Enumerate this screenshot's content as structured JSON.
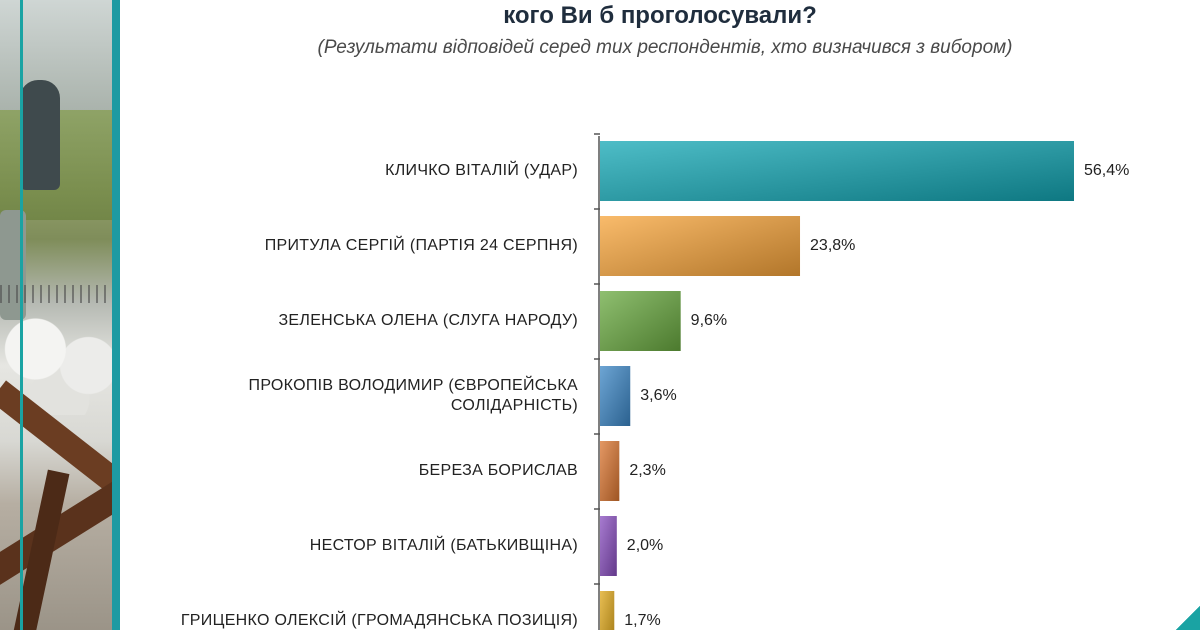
{
  "title": "кого Ви б проголосували?",
  "subtitle": "(Результати відповідей серед тих респондентів, хто визначився з вибором)",
  "chart_data": {
    "type": "bar",
    "orientation": "horizontal",
    "categories": [
      "КЛИЧКО ВІТАЛІЙ (УДАР)",
      "ПРИТУЛА СЕРГІЙ (ПАРТІЯ 24 СЕРПНЯ)",
      "ЗЕЛЕНСЬКА ОЛЕНА (СЛУГА НАРОДУ)",
      "ПРОКОПІВ ВОЛОДИМИР (ЄВРОПЕЙСЬКА СОЛІДАРНІСТЬ)",
      "БЕРЕЗА БОРИСЛАВ",
      "НЕСТОР ВІТАЛІЙ (БАТЬКИВЩІНА)",
      "ГРИЦЕНКО ОЛЕКСІЙ (ГРОМАДЯНСЬКА ПОЗИЦІЯ)"
    ],
    "values": [
      56.4,
      23.8,
      9.6,
      3.6,
      2.3,
      2.0,
      1.7
    ],
    "value_labels": [
      "56,4%",
      "23,8%",
      "9,6%",
      "3,6%",
      "2,3%",
      "2,0%",
      "1,7%"
    ],
    "colors": [
      "#13a7b4",
      "#f7a43a",
      "#6aaa40",
      "#3c87c6",
      "#db7630",
      "#8a4fc0",
      "#e0a81a"
    ],
    "xlim": [
      0,
      56.4
    ],
    "grid": false
  }
}
